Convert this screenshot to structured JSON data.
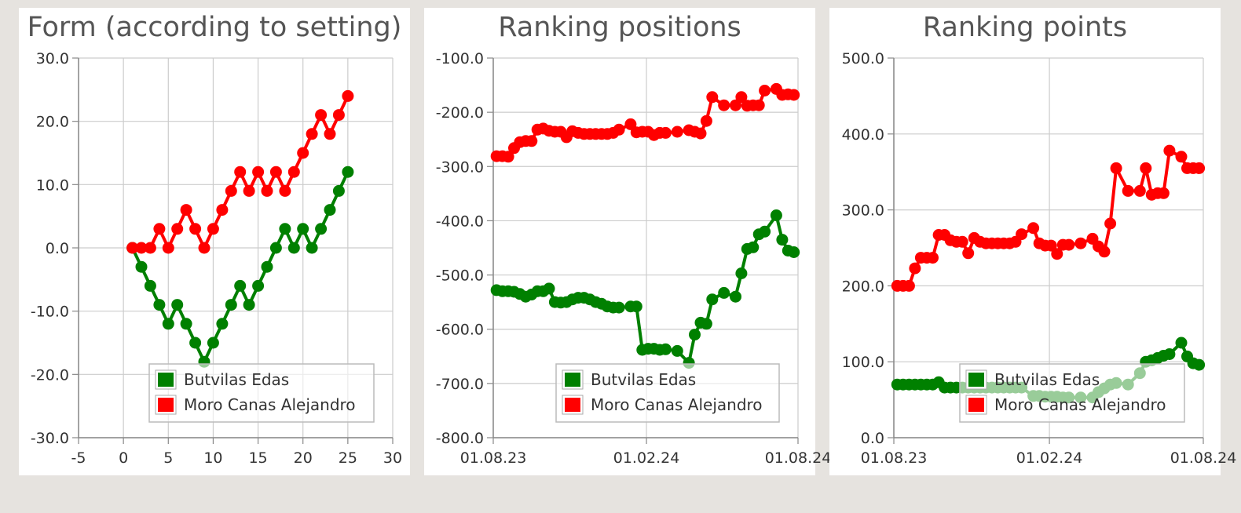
{
  "chart_data": [
    {
      "type": "line",
      "title": "Form (according to setting)",
      "xlim": [
        -5,
        30
      ],
      "ylim": [
        -30,
        30
      ],
      "x_ticks": [
        "-5",
        "0",
        "5",
        "10",
        "15",
        "20",
        "25",
        "30"
      ],
      "y_ticks": [
        "30.0",
        "20.0",
        "10.0",
        "0.0",
        "-10.0",
        "-20.0",
        "-30.0"
      ],
      "grid": true,
      "legend": "bottom-center",
      "series": [
        {
          "name": "Butvilas Edas",
          "color": "#008000",
          "x": [
            1,
            2,
            3,
            4,
            5,
            6,
            7,
            8,
            9,
            10,
            11,
            12,
            13,
            14,
            15,
            16,
            17,
            18,
            19,
            20,
            21,
            22,
            23,
            24,
            25
          ],
          "y": [
            0,
            -3,
            -6,
            -9,
            -12,
            -9,
            -12,
            -15,
            -18,
            -15,
            -12,
            -9,
            -6,
            -9,
            -6,
            -3,
            0,
            3,
            0,
            3,
            0,
            3,
            6,
            9,
            12
          ]
        },
        {
          "name": "Moro Canas Alejandro",
          "color": "#ff0000",
          "x": [
            1,
            2,
            3,
            4,
            5,
            6,
            7,
            8,
            9,
            10,
            11,
            12,
            13,
            14,
            15,
            16,
            17,
            18,
            19,
            20,
            21,
            22,
            23,
            24,
            25
          ],
          "y": [
            0,
            0,
            0,
            3,
            0,
            3,
            6,
            3,
            0,
            3,
            6,
            9,
            12,
            9,
            12,
            9,
            12,
            9,
            12,
            15,
            18,
            21,
            18,
            21,
            24
          ]
        }
      ]
    },
    {
      "type": "line",
      "title": "Ranking positions",
      "xlim": [
        "2023-08-01",
        "2024-08-01"
      ],
      "ylim": [
        -800,
        -100
      ],
      "x_ticks": [
        "01.08.23",
        "01.02.24",
        "01.08.24"
      ],
      "y_ticks": [
        "-100.0",
        "-200.0",
        "-300.0",
        "-400.0",
        "-500.0",
        "-600.0",
        "-700.0",
        "-800.0"
      ],
      "grid": true,
      "legend": "bottom-center",
      "series": [
        {
          "name": "Butvilas Edas",
          "color": "#008000",
          "x": [
            "2023-08-05",
            "2023-08-12",
            "2023-08-19",
            "2023-08-26",
            "2023-09-02",
            "2023-09-09",
            "2023-09-16",
            "2023-09-23",
            "2023-09-30",
            "2023-10-07",
            "2023-10-14",
            "2023-10-21",
            "2023-10-28",
            "2023-11-04",
            "2023-11-11",
            "2023-11-18",
            "2023-11-25",
            "2023-12-02",
            "2023-12-09",
            "2023-12-16",
            "2023-12-23",
            "2023-12-30",
            "2024-01-13",
            "2024-01-20",
            "2024-01-27",
            "2024-02-03",
            "2024-02-10",
            "2024-02-17",
            "2024-02-24",
            "2024-03-09",
            "2024-03-23",
            "2024-03-30",
            "2024-04-06",
            "2024-04-13",
            "2024-04-20",
            "2024-05-04",
            "2024-05-18",
            "2024-05-25",
            "2024-06-01",
            "2024-06-08",
            "2024-06-15",
            "2024-06-22",
            "2024-07-06",
            "2024-07-13",
            "2024-07-20",
            "2024-07-27"
          ],
          "y": [
            -528,
            -530,
            -530,
            -531,
            -535,
            -540,
            -536,
            -530,
            -530,
            -525,
            -550,
            -551,
            -550,
            -545,
            -542,
            -542,
            -545,
            -550,
            -553,
            -558,
            -560,
            -560,
            -558,
            -558,
            -638,
            -636,
            -636,
            -638,
            -637,
            -640,
            -662,
            -610,
            -588,
            -590,
            -545,
            -533,
            -540,
            -497,
            -452,
            -449,
            -425,
            -420,
            -390,
            -435,
            -455,
            -458
          ]
        },
        {
          "name": "Moro Canas Alejandro",
          "color": "#ff0000",
          "x": [
            "2023-08-05",
            "2023-08-12",
            "2023-08-19",
            "2023-08-26",
            "2023-09-02",
            "2023-09-09",
            "2023-09-16",
            "2023-09-23",
            "2023-09-30",
            "2023-10-07",
            "2023-10-14",
            "2023-10-21",
            "2023-10-28",
            "2023-11-04",
            "2023-11-11",
            "2023-11-18",
            "2023-11-25",
            "2023-12-02",
            "2023-12-09",
            "2023-12-16",
            "2023-12-23",
            "2023-12-30",
            "2024-01-13",
            "2024-01-20",
            "2024-01-27",
            "2024-02-03",
            "2024-02-10",
            "2024-02-17",
            "2024-02-24",
            "2024-03-09",
            "2024-03-23",
            "2024-03-30",
            "2024-04-06",
            "2024-04-13",
            "2024-04-20",
            "2024-05-04",
            "2024-05-18",
            "2024-05-25",
            "2024-06-01",
            "2024-06-08",
            "2024-06-15",
            "2024-06-22",
            "2024-07-06",
            "2024-07-13",
            "2024-07-20",
            "2024-07-27"
          ],
          "y": [
            -281,
            -281,
            -282,
            -266,
            -255,
            -253,
            -253,
            -232,
            -230,
            -234,
            -236,
            -236,
            -246,
            -235,
            -238,
            -240,
            -240,
            -240,
            -240,
            -240,
            -238,
            -232,
            -222,
            -237,
            -236,
            -236,
            -242,
            -238,
            -238,
            -236,
            -233,
            -236,
            -239,
            -216,
            -172,
            -187,
            -187,
            -172,
            -188,
            -187,
            -187,
            -160,
            -157,
            -168,
            -167,
            -168
          ]
        }
      ]
    },
    {
      "type": "line",
      "title": "Ranking points",
      "xlim": [
        "2023-08-01",
        "2024-08-01"
      ],
      "ylim": [
        0,
        500
      ],
      "x_ticks": [
        "01.08.23",
        "01.02.24",
        "01.08.24"
      ],
      "y_ticks": [
        "500.0",
        "400.0",
        "300.0",
        "200.0",
        "100.0",
        "0.0"
      ],
      "grid": true,
      "legend": "bottom-center",
      "series": [
        {
          "name": "Butvilas Edas",
          "color": "#008000",
          "x": [
            "2023-08-05",
            "2023-08-12",
            "2023-08-19",
            "2023-08-26",
            "2023-09-02",
            "2023-09-09",
            "2023-09-16",
            "2023-09-23",
            "2023-09-30",
            "2023-10-07",
            "2023-10-14",
            "2023-10-21",
            "2023-10-28",
            "2023-11-04",
            "2023-11-11",
            "2023-11-18",
            "2023-11-25",
            "2023-12-02",
            "2023-12-09",
            "2023-12-16",
            "2023-12-23",
            "2023-12-30",
            "2024-01-13",
            "2024-01-20",
            "2024-01-27",
            "2024-02-03",
            "2024-02-10",
            "2024-02-17",
            "2024-02-24",
            "2024-03-09",
            "2024-03-23",
            "2024-03-30",
            "2024-04-06",
            "2024-04-13",
            "2024-04-20",
            "2024-05-04",
            "2024-05-18",
            "2024-05-25",
            "2024-06-01",
            "2024-06-08",
            "2024-06-15",
            "2024-06-22",
            "2024-07-06",
            "2024-07-13",
            "2024-07-20",
            "2024-07-27"
          ],
          "y": [
            70,
            70,
            70,
            70,
            70,
            70,
            70,
            73,
            66,
            66,
            66,
            66,
            66,
            66,
            66,
            66,
            66,
            66,
            66,
            66,
            66,
            66,
            55,
            55,
            54,
            54,
            54,
            53,
            53,
            53,
            53,
            60,
            65,
            70,
            72,
            70,
            85,
            100,
            102,
            105,
            108,
            110,
            125,
            107,
            98,
            96
          ]
        },
        {
          "name": "Moro Canas Alejandro",
          "color": "#ff0000",
          "x": [
            "2023-08-05",
            "2023-08-12",
            "2023-08-19",
            "2023-08-26",
            "2023-09-02",
            "2023-09-09",
            "2023-09-16",
            "2023-09-23",
            "2023-09-30",
            "2023-10-07",
            "2023-10-14",
            "2023-10-21",
            "2023-10-28",
            "2023-11-04",
            "2023-11-11",
            "2023-11-18",
            "2023-11-25",
            "2023-12-02",
            "2023-12-09",
            "2023-12-16",
            "2023-12-23",
            "2023-12-30",
            "2024-01-13",
            "2024-01-20",
            "2024-01-27",
            "2024-02-03",
            "2024-02-10",
            "2024-02-17",
            "2024-02-24",
            "2024-03-09",
            "2024-03-23",
            "2024-03-30",
            "2024-04-06",
            "2024-04-13",
            "2024-04-20",
            "2024-05-04",
            "2024-05-18",
            "2024-05-25",
            "2024-06-01",
            "2024-06-08",
            "2024-06-15",
            "2024-06-22",
            "2024-07-06",
            "2024-07-13",
            "2024-07-20",
            "2024-07-27"
          ],
          "y": [
            200,
            200,
            200,
            223,
            237,
            237,
            237,
            267,
            267,
            260,
            258,
            258,
            243,
            263,
            258,
            256,
            256,
            256,
            256,
            256,
            258,
            268,
            276,
            256,
            253,
            253,
            242,
            254,
            254,
            256,
            262,
            252,
            245,
            282,
            355,
            325,
            325,
            355,
            320,
            322,
            322,
            378,
            370,
            355,
            355,
            355
          ]
        }
      ]
    }
  ]
}
